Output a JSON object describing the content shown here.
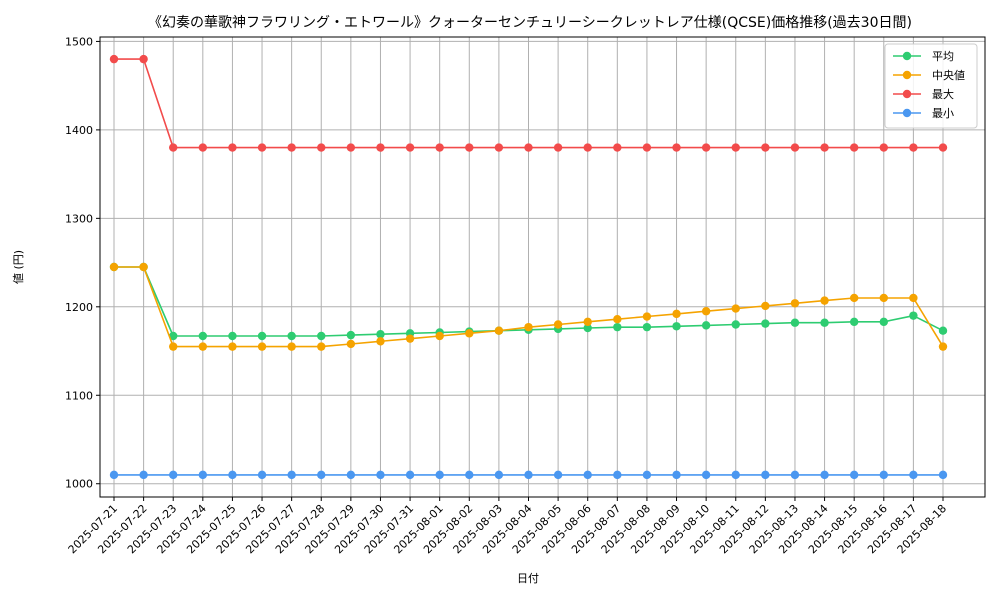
{
  "chart_data": {
    "type": "line",
    "title": "《幻奏の華歌神フラワリング・エトワール》クォーターセンチュリーシークレットレア仕様(QCSE)価格推移(過去30日間)",
    "xlabel": "日付",
    "ylabel": "値 (円)",
    "ylim": [
      985,
      1505
    ],
    "yticks": [
      1000,
      1100,
      1200,
      1300,
      1400,
      1500
    ],
    "grid": true,
    "legend_position": "top-right",
    "categories": [
      "2025-07-21",
      "2025-07-22",
      "2025-07-23",
      "2025-07-24",
      "2025-07-25",
      "2025-07-26",
      "2025-07-27",
      "2025-07-28",
      "2025-07-29",
      "2025-07-30",
      "2025-07-31",
      "2025-08-01",
      "2025-08-02",
      "2025-08-03",
      "2025-08-04",
      "2025-08-05",
      "2025-08-06",
      "2025-08-07",
      "2025-08-08",
      "2025-08-09",
      "2025-08-10",
      "2025-08-11",
      "2025-08-12",
      "2025-08-13",
      "2025-08-14",
      "2025-08-15",
      "2025-08-16",
      "2025-08-17",
      "2025-08-18"
    ],
    "series": [
      {
        "name": "平均",
        "color": "#2ecc71",
        "values": [
          1245,
          1245,
          1167,
          1167,
          1167,
          1167,
          1167,
          1167,
          1168,
          1169,
          1170,
          1171,
          1172,
          1173,
          1174,
          1175,
          1176,
          1177,
          1177,
          1178,
          1179,
          1180,
          1181,
          1182,
          1182,
          1183,
          1183,
          1190,
          1173
        ]
      },
      {
        "name": "中央値",
        "color": "#f5a300",
        "values": [
          1245,
          1245,
          1155,
          1155,
          1155,
          1155,
          1155,
          1155,
          1158,
          1161,
          1164,
          1167,
          1170,
          1173,
          1177,
          1180,
          1183,
          1186,
          1189,
          1192,
          1195,
          1198,
          1201,
          1204,
          1207,
          1210,
          1210,
          1210,
          1155
        ]
      },
      {
        "name": "最大",
        "color": "#f24b4b",
        "values": [
          1480,
          1480,
          1380,
          1380,
          1380,
          1380,
          1380,
          1380,
          1380,
          1380,
          1380,
          1380,
          1380,
          1380,
          1380,
          1380,
          1380,
          1380,
          1380,
          1380,
          1380,
          1380,
          1380,
          1380,
          1380,
          1380,
          1380,
          1380,
          1380
        ]
      },
      {
        "name": "最小",
        "color": "#4a97f0",
        "values": [
          1010,
          1010,
          1010,
          1010,
          1010,
          1010,
          1010,
          1010,
          1010,
          1010,
          1010,
          1010,
          1010,
          1010,
          1010,
          1010,
          1010,
          1010,
          1010,
          1010,
          1010,
          1010,
          1010,
          1010,
          1010,
          1010,
          1010,
          1010,
          1010
        ]
      }
    ]
  }
}
